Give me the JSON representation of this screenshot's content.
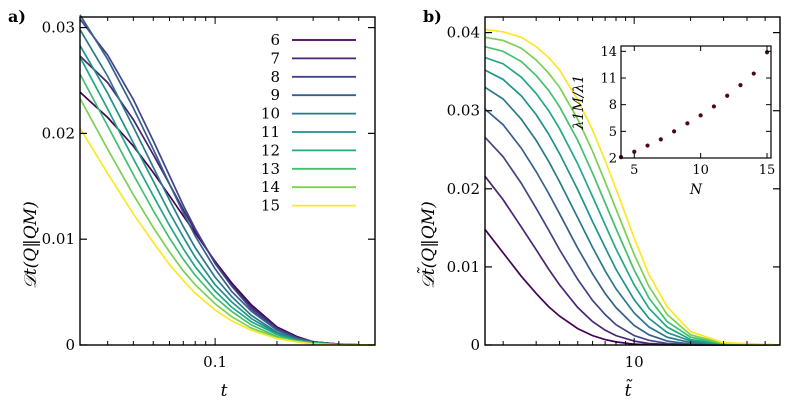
{
  "colors": [
    "#440154",
    "#482475",
    "#414487",
    "#355f8d",
    "#2a788e",
    "#21918c",
    "#22a884",
    "#44bf70",
    "#7ad151",
    "#fde725"
  ],
  "chart_data": [
    {
      "type": "line",
      "panel_label": "a)",
      "xlabel": "t",
      "ylabel": "𝒟t(Q‖QM)",
      "xscale": "log",
      "xlim": [
        0.022,
        0.6
      ],
      "ylim": [
        0,
        0.031
      ],
      "xticks": [
        {
          "value": 0.1,
          "label": "0.1"
        }
      ],
      "yticks": [
        {
          "value": 0,
          "label": "0"
        },
        {
          "value": 0.01,
          "label": "0.01"
        },
        {
          "value": 0.02,
          "label": "0.02"
        },
        {
          "value": 0.03,
          "label": "0.03"
        }
      ],
      "legend_position": "top-right",
      "series": [
        {
          "name": "6",
          "x": [
            0.022,
            0.03,
            0.04,
            0.05,
            0.06,
            0.07,
            0.08,
            0.1,
            0.12,
            0.15,
            0.2,
            0.25,
            0.3,
            0.4,
            0.5,
            0.6
          ],
          "y": [
            0.0239,
            0.0215,
            0.0188,
            0.0163,
            0.0141,
            0.0122,
            0.0106,
            0.0079,
            0.0059,
            0.0038,
            0.0017,
            0.0008,
            0.0003,
            8e-05,
            2e-05,
            0.0
          ]
        },
        {
          "name": "7",
          "x": [
            0.022,
            0.03,
            0.04,
            0.05,
            0.06,
            0.07,
            0.08,
            0.1,
            0.12,
            0.15,
            0.2,
            0.25,
            0.3,
            0.4,
            0.5,
            0.6
          ],
          "y": [
            0.0273,
            0.0248,
            0.0213,
            0.018,
            0.0152,
            0.0128,
            0.0108,
            0.0078,
            0.0057,
            0.0036,
            0.0016,
            0.0007,
            0.0003,
            7e-05,
            2e-05,
            0.0
          ]
        },
        {
          "name": "8",
          "x": [
            0.022,
            0.03,
            0.04,
            0.05,
            0.06,
            0.07,
            0.08,
            0.1,
            0.12,
            0.15,
            0.2,
            0.25,
            0.3,
            0.4,
            0.5,
            0.6
          ],
          "y": [
            0.0308,
            0.0274,
            0.0232,
            0.0193,
            0.016,
            0.0132,
            0.011,
            0.0077,
            0.0056,
            0.0034,
            0.0015,
            0.0007,
            0.0003,
            7e-05,
            2e-05,
            0.0
          ]
        },
        {
          "name": "9",
          "x": [
            0.022,
            0.03,
            0.04,
            0.05,
            0.06,
            0.07,
            0.08,
            0.1,
            0.12,
            0.15,
            0.2,
            0.25,
            0.3,
            0.4,
            0.5,
            0.6
          ],
          "y": [
            0.0312,
            0.027,
            0.0224,
            0.0185,
            0.0152,
            0.0125,
            0.0103,
            0.0072,
            0.0051,
            0.0032,
            0.0014,
            0.0006,
            0.0003,
            6e-05,
            1e-05,
            0.0
          ]
        },
        {
          "name": "10",
          "x": [
            0.022,
            0.03,
            0.04,
            0.05,
            0.06,
            0.07,
            0.08,
            0.1,
            0.12,
            0.15,
            0.2,
            0.25,
            0.3,
            0.4,
            0.5,
            0.6
          ],
          "y": [
            0.0298,
            0.0254,
            0.0206,
            0.0168,
            0.0137,
            0.0112,
            0.0092,
            0.0064,
            0.0046,
            0.0028,
            0.0012,
            0.0005,
            0.0002,
            5e-05,
            1e-05,
            0.0
          ]
        },
        {
          "name": "11",
          "x": [
            0.022,
            0.03,
            0.04,
            0.05,
            0.06,
            0.07,
            0.08,
            0.1,
            0.12,
            0.15,
            0.2,
            0.25,
            0.3,
            0.4,
            0.5,
            0.6
          ],
          "y": [
            0.0283,
            0.0238,
            0.0191,
            0.0155,
            0.0125,
            0.0102,
            0.0083,
            0.0057,
            0.0041,
            0.0025,
            0.0011,
            0.0005,
            0.0002,
            4e-05,
            1e-05,
            0.0
          ]
        },
        {
          "name": "12",
          "x": [
            0.022,
            0.03,
            0.04,
            0.05,
            0.06,
            0.07,
            0.08,
            0.1,
            0.12,
            0.15,
            0.2,
            0.25,
            0.3,
            0.4,
            0.5,
            0.6
          ],
          "y": [
            0.0272,
            0.0223,
            0.0176,
            0.0141,
            0.0113,
            0.0091,
            0.0074,
            0.0051,
            0.0036,
            0.0022,
            0.001,
            0.0004,
            0.0002,
            4e-05,
            1e-05,
            0.0
          ]
        },
        {
          "name": "13",
          "x": [
            0.022,
            0.03,
            0.04,
            0.05,
            0.06,
            0.07,
            0.08,
            0.1,
            0.12,
            0.15,
            0.2,
            0.25,
            0.3,
            0.4,
            0.5,
            0.6
          ],
          "y": [
            0.0256,
            0.0207,
            0.0161,
            0.0127,
            0.0101,
            0.0081,
            0.0066,
            0.0045,
            0.0032,
            0.0019,
            0.0008,
            0.0004,
            0.0002,
            3e-05,
            1e-05,
            0.0
          ]
        },
        {
          "name": "14",
          "x": [
            0.022,
            0.03,
            0.04,
            0.05,
            0.06,
            0.07,
            0.08,
            0.1,
            0.12,
            0.15,
            0.2,
            0.25,
            0.3,
            0.4,
            0.5,
            0.6
          ],
          "y": [
            0.0233,
            0.0185,
            0.0142,
            0.0111,
            0.0088,
            0.007,
            0.0057,
            0.0039,
            0.0027,
            0.0016,
            0.0007,
            0.0003,
            0.0001,
            3e-05,
            1e-05,
            0.0
          ]
        },
        {
          "name": "15",
          "x": [
            0.022,
            0.03,
            0.04,
            0.05,
            0.06,
            0.07,
            0.08,
            0.1,
            0.12,
            0.15,
            0.2,
            0.25,
            0.3,
            0.4,
            0.5,
            0.6
          ],
          "y": [
            0.0205,
            0.0162,
            0.0124,
            0.0097,
            0.0076,
            0.0061,
            0.0049,
            0.0033,
            0.0023,
            0.0014,
            0.0006,
            0.0003,
            0.0001,
            2e-05,
            0.0,
            0.0
          ]
        }
      ]
    },
    {
      "type": "line",
      "panel_label": "b)",
      "xlabel": "t̃",
      "ylabel": "𝒟t̃(Q‖QM)",
      "xscale": "log",
      "xlim": [
        1.6,
        60
      ],
      "ylim": [
        0,
        0.042
      ],
      "xticks": [
        {
          "value": 10,
          "label": "10"
        }
      ],
      "yticks": [
        {
          "value": 0,
          "label": "0"
        },
        {
          "value": 0.01,
          "label": "0.01"
        },
        {
          "value": 0.02,
          "label": "0.02"
        },
        {
          "value": 0.03,
          "label": "0.03"
        },
        {
          "value": 0.04,
          "label": "0.04"
        }
      ],
      "series": [
        {
          "name": "6",
          "x": [
            1.6,
            2,
            2.5,
            3,
            3.5,
            4,
            5,
            6,
            7,
            8,
            10,
            12,
            15,
            20,
            30,
            60
          ],
          "y": [
            0.0148,
            0.0118,
            0.0088,
            0.0066,
            0.0049,
            0.0037,
            0.0021,
            0.0012,
            0.0007,
            0.0004,
            0.0001,
            5e-05,
            1e-05,
            0.0,
            0.0,
            0.0
          ]
        },
        {
          "name": "7",
          "x": [
            1.6,
            2,
            2.5,
            3,
            3.5,
            4,
            5,
            6,
            7,
            8,
            10,
            12,
            15,
            20,
            30,
            60
          ],
          "y": [
            0.0216,
            0.0186,
            0.0151,
            0.0122,
            0.0097,
            0.0077,
            0.0048,
            0.003,
            0.0019,
            0.0012,
            0.0005,
            0.0002,
            6e-05,
            1e-05,
            0.0,
            0.0
          ]
        },
        {
          "name": "8",
          "x": [
            1.6,
            2,
            2.5,
            3,
            3.5,
            4,
            5,
            6,
            7,
            8,
            10,
            12,
            15,
            20,
            30,
            60
          ],
          "y": [
            0.0266,
            0.0241,
            0.0207,
            0.0175,
            0.0147,
            0.0122,
            0.0084,
            0.0057,
            0.0039,
            0.0026,
            0.0012,
            0.0006,
            0.0002,
            5e-05,
            0.0,
            0.0
          ]
        },
        {
          "name": "9",
          "x": [
            1.6,
            2,
            2.5,
            3,
            3.5,
            4,
            5,
            6,
            7,
            8,
            10,
            12,
            15,
            20,
            30,
            60
          ],
          "y": [
            0.0302,
            0.0282,
            0.0252,
            0.0222,
            0.0194,
            0.0168,
            0.0124,
            0.0091,
            0.0066,
            0.0048,
            0.0025,
            0.0013,
            0.0005,
            0.00012,
            1e-05,
            0.0
          ]
        },
        {
          "name": "10",
          "x": [
            1.6,
            2,
            2.5,
            3,
            3.5,
            4,
            5,
            6,
            7,
            8,
            10,
            12,
            15,
            20,
            30,
            60
          ],
          "y": [
            0.033,
            0.0315,
            0.0289,
            0.0262,
            0.0235,
            0.0209,
            0.0163,
            0.0125,
            0.0095,
            0.0072,
            0.0041,
            0.0023,
            0.001,
            0.0003,
            3e-05,
            0.0
          ]
        },
        {
          "name": "11",
          "x": [
            1.6,
            2,
            2.5,
            3,
            3.5,
            4,
            5,
            6,
            7,
            8,
            10,
            12,
            15,
            20,
            30,
            60
          ],
          "y": [
            0.0352,
            0.034,
            0.0319,
            0.0295,
            0.027,
            0.0245,
            0.0199,
            0.0158,
            0.0125,
            0.0097,
            0.0058,
            0.0034,
            0.0016,
            0.0005,
            5e-05,
            0.0
          ]
        },
        {
          "name": "12",
          "x": [
            1.6,
            2,
            2.5,
            3,
            3.5,
            4,
            5,
            6,
            7,
            8,
            10,
            12,
            15,
            20,
            30,
            60
          ],
          "y": [
            0.0368,
            0.036,
            0.0343,
            0.0322,
            0.03,
            0.0277,
            0.0232,
            0.019,
            0.0154,
            0.0123,
            0.0077,
            0.0047,
            0.0023,
            0.0007,
            0.0001,
            0.0
          ]
        },
        {
          "name": "13",
          "x": [
            1.6,
            2,
            2.5,
            3,
            3.5,
            4,
            5,
            6,
            7,
            8,
            10,
            12,
            15,
            20,
            30,
            60
          ],
          "y": [
            0.0382,
            0.0376,
            0.0363,
            0.0345,
            0.0326,
            0.0305,
            0.0262,
            0.022,
            0.0182,
            0.0149,
            0.0096,
            0.006,
            0.003,
            0.001,
            0.00014,
            0.0
          ]
        },
        {
          "name": "14",
          "x": [
            1.6,
            2,
            2.5,
            3,
            3.5,
            4,
            5,
            6,
            7,
            8,
            10,
            12,
            15,
            20,
            30,
            60
          ],
          "y": [
            0.0394,
            0.039,
            0.038,
            0.0365,
            0.0348,
            0.033,
            0.0289,
            0.0248,
            0.0209,
            0.0174,
            0.0116,
            0.0075,
            0.0039,
            0.0013,
            0.0002,
            0.0
          ]
        },
        {
          "name": "15",
          "x": [
            1.6,
            2,
            2.5,
            3,
            3.5,
            4,
            5,
            6,
            7,
            8,
            10,
            12,
            15,
            20,
            30,
            60
          ],
          "y": [
            0.0404,
            0.0401,
            0.0394,
            0.0382,
            0.0368,
            0.0352,
            0.0314,
            0.0275,
            0.0236,
            0.02,
            0.0137,
            0.009,
            0.0049,
            0.0017,
            0.0003,
            0.0
          ]
        }
      ],
      "inset": {
        "type": "scatter",
        "xlabel": "N",
        "ylabel": "λ1M/λ1",
        "xlim": [
          4,
          15.3
        ],
        "ylim": [
          2,
          14.6
        ],
        "xticks": [
          {
            "value": 5,
            "label": "5"
          },
          {
            "value": 10,
            "label": "10"
          },
          {
            "value": 15,
            "label": "15"
          }
        ],
        "yticks": [
          {
            "value": 2,
            "label": "2"
          },
          {
            "value": 5,
            "label": "5"
          },
          {
            "value": 8,
            "label": "8"
          },
          {
            "value": 11,
            "label": "11"
          },
          {
            "value": 14,
            "label": "14"
          }
        ],
        "x": [
          4,
          5,
          6,
          7,
          8,
          9,
          10,
          11,
          12,
          13,
          14,
          15
        ],
        "y": [
          2.1,
          2.7,
          3.4,
          4.1,
          5.0,
          5.9,
          6.8,
          7.8,
          9.0,
          10.2,
          11.5,
          13.9
        ],
        "color": "#4a0a16"
      }
    }
  ]
}
